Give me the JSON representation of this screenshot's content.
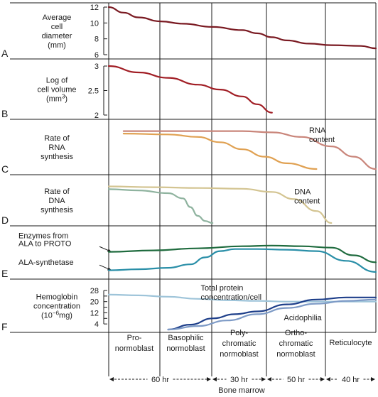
{
  "chart_data": {
    "type": "line",
    "title": "",
    "panels": [
      {
        "letter": "A",
        "label_lines": [
          "Average",
          "cell",
          "diameter",
          "(mm)"
        ],
        "ylim": [
          6,
          12
        ],
        "ticks": [
          12,
          10,
          8,
          6
        ],
        "series": [
          {
            "color": "#7a1a22",
            "x": [
              0,
              10,
              20,
              35,
              50,
              70,
              90,
              100,
              110,
              120,
              135,
              150,
              170,
              180
            ],
            "y": [
              12,
              11.3,
              10.7,
              10.2,
              9.9,
              9.5,
              9.1,
              8.7,
              8.2,
              7.8,
              7.4,
              7.2,
              7.1,
              6.8
            ]
          }
        ],
        "annotations": []
      },
      {
        "letter": "B",
        "label_lines": [
          "Log of",
          "cell volume",
          "(mm3)"
        ],
        "ylim": [
          2,
          3
        ],
        "ticks": [
          "3",
          "2.5",
          "2"
        ],
        "series": [
          {
            "color": "#a11e25",
            "x": [
              0,
              20,
              40,
              60,
              75,
              90,
              100,
              110
            ],
            "y": [
              3.0,
              2.87,
              2.76,
              2.62,
              2.52,
              2.38,
              2.22,
              2.05
            ]
          }
        ],
        "annotations": []
      },
      {
        "letter": "C",
        "label_lines": [
          "Rate of",
          "RNA",
          "synthesis"
        ],
        "ylim": [
          0,
          1
        ],
        "ticks": [],
        "series": [
          {
            "color": "#c9857a",
            "x": [
              10,
              40,
              70,
              90,
              110,
              130,
              150,
              165,
              180
            ],
            "y": [
              0.92,
              0.92,
              0.92,
              0.92,
              0.89,
              0.78,
              0.55,
              0.3,
              0.0
            ]
          },
          {
            "color": "#e0a152",
            "x": [
              10,
              40,
              60,
              75,
              90,
              105,
              120,
              140
            ],
            "y": [
              0.86,
              0.84,
              0.78,
              0.65,
              0.48,
              0.3,
              0.14,
              0.0
            ]
          }
        ],
        "annotations": [
          {
            "lines": [
              "RNA",
              "content"
            ],
            "x": 135,
            "y": 0.88
          }
        ]
      },
      {
        "letter": "D",
        "label_lines": [
          "Rate of",
          "DNA",
          "synthesis"
        ],
        "ylim": [
          0,
          1
        ],
        "ticks": [],
        "series": [
          {
            "color": "#d3c491",
            "x": [
              0,
              30,
              60,
              90,
              110,
              125,
              140,
              150
            ],
            "y": [
              0.92,
              0.9,
              0.88,
              0.86,
              0.78,
              0.6,
              0.3,
              0.0
            ]
          },
          {
            "color": "#8fb39f",
            "x": [
              0,
              20,
              40,
              50,
              55,
              60,
              65,
              70
            ],
            "y": [
              0.85,
              0.82,
              0.75,
              0.62,
              0.4,
              0.18,
              0.05,
              0.0
            ]
          }
        ],
        "annotations": [
          {
            "lines": [
              "DNA",
              "content"
            ],
            "x": 125,
            "y": 0.72
          }
        ]
      },
      {
        "letter": "E",
        "label_lines": [],
        "ylim": [
          0,
          1
        ],
        "ticks": [],
        "series": [
          {
            "color": "#1f6b3e",
            "x": [
              0,
              30,
              60,
              90,
              110,
              130,
              150,
              165,
              180
            ],
            "y": [
              0.58,
              0.62,
              0.68,
              0.74,
              0.76,
              0.74,
              0.7,
              0.48,
              0.28
            ]
          },
          {
            "color": "#2a8fa8",
            "x": [
              0,
              20,
              40,
              55,
              65,
              75,
              85,
              100,
              120,
              140,
              160,
              180
            ],
            "y": [
              0.05,
              0.08,
              0.12,
              0.22,
              0.42,
              0.6,
              0.66,
              0.66,
              0.64,
              0.6,
              0.32,
              0.0
            ]
          }
        ],
        "annotations": [
          {
            "lines": [
              "Enzymes from"
            ],
            "x": -52,
            "y": 0.97
          },
          {
            "lines": [
              "ALA to PROTO"
            ],
            "x": -52,
            "y": 0.75
          },
          {
            "lines": [
              "ALA-synthetase"
            ],
            "x": -52,
            "y": 0.2
          }
        ]
      },
      {
        "letter": "F",
        "label_lines": [
          "Hemoglobin",
          "concentration",
          "(10-6mg)"
        ],
        "ylim": [
          0,
          28
        ],
        "ticks": [
          28,
          20,
          12,
          4
        ],
        "ticks_extra": [
          24,
          16,
          8
        ],
        "series": [
          {
            "color": "#9ec4d9",
            "x": [
              0,
              20,
              40,
              60,
              80,
              100,
              120,
              140,
              160,
              180
            ],
            "y": [
              25,
              24.5,
              23.5,
              22,
              21,
              20.5,
              20,
              20,
              20,
              20
            ]
          },
          {
            "color": "#1e3f8a",
            "x": [
              40,
              55,
              70,
              85,
              100,
              120,
              140,
              160,
              180
            ],
            "y": [
              0,
              3.5,
              8,
              11,
              13,
              18,
              21.5,
              23,
              23
            ]
          },
          {
            "color": "#7d9ac6",
            "x": [
              40,
              60,
              80,
              100,
              120,
              140,
              160,
              180
            ],
            "y": [
              0,
              2.5,
              6.5,
              11,
              15.5,
              18.5,
              20.5,
              21.5
            ]
          }
        ],
        "annotations": [
          {
            "lines": [
              "Total protein",
              "concentration/cell"
            ],
            "x": 62,
            "y": 28
          },
          {
            "lines": [
              "Acidophilia"
            ],
            "x": 118,
            "y": 6.5
          }
        ]
      }
    ],
    "stages": [
      {
        "lines": [
          "Pro-",
          "normoblast"
        ]
      },
      {
        "lines": [
          "Basophilic",
          "normoblast"
        ]
      },
      {
        "lines": [
          "Poly-",
          "chromatic",
          "normoblast"
        ]
      },
      {
        "lines": [
          "Ortho-",
          "chromatic",
          "normoblast"
        ]
      },
      {
        "lines": [
          "Reticulocyte"
        ]
      }
    ],
    "durations": [
      "60 hr",
      "30 hr",
      "50 hr",
      "40 hr"
    ],
    "location_label": "Bone marrow",
    "grid": "vertical stage dividers"
  },
  "colors": {
    "frame": "#1a1a1a",
    "text": "#1a1a1a"
  }
}
